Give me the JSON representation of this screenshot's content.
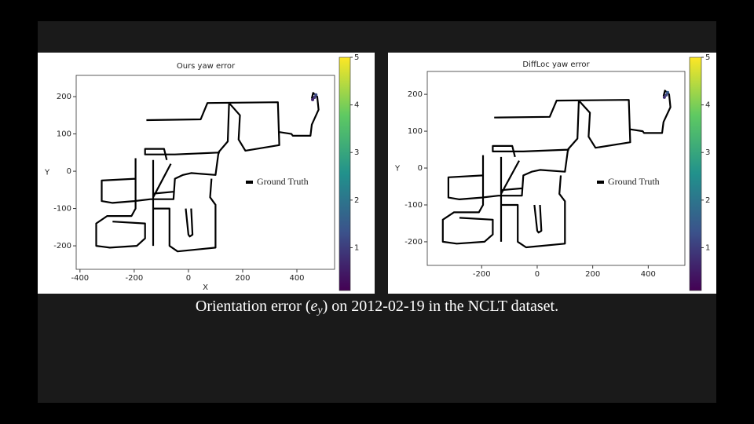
{
  "caption": {
    "before": "Orientation error (",
    "symbol": "e",
    "subscript": "y",
    "after": ") on 2012-02-19 in the NCLT dataset."
  },
  "chart_data": [
    {
      "type": "line",
      "title": "Ours yaw error",
      "xlabel": "X",
      "ylabel": "Y",
      "xlim": [
        -414,
        539
      ],
      "ylim": [
        -263,
        257
      ],
      "xticks": [
        -400,
        -200,
        0,
        200,
        400
      ],
      "yticks": [
        -200,
        -100,
        0,
        100,
        200
      ],
      "series": [
        {
          "name": "Ground Truth",
          "color": "#000000",
          "x": [
            -155,
            45,
            70,
            330,
            335,
            210,
            185,
            190,
            150,
            null,
            335,
            380,
            385,
            450,
            455,
            480,
            475,
            460,
            455,
            null,
            150,
            145,
            110,
            -50,
            -160,
            -160,
            -90,
            -80,
            null,
            -195,
            -195,
            -320,
            -320,
            -280,
            -200,
            -140,
            -55,
            -50,
            -20,
            10,
            100,
            110,
            115,
            null,
            -195,
            -195,
            -210,
            -300,
            -340,
            -340,
            -290,
            -190,
            -160,
            -160,
            -280,
            null,
            -130,
            -130,
            -70,
            -70,
            -40,
            100,
            100,
            80,
            85,
            null,
            -130,
            -65,
            null,
            -130,
            -55,
            null,
            -10,
            0,
            5,
            15,
            10,
            null,
            -130,
            -130
          ],
          "y": [
            137,
            139,
            183,
            185,
            70,
            55,
            85,
            150,
            183,
            null,
            105,
            100,
            95,
            95,
            125,
            165,
            200,
            210,
            195,
            null,
            185,
            80,
            50,
            45,
            45,
            60,
            60,
            30,
            null,
            35,
            -20,
            -25,
            -80,
            -85,
            -80,
            -75,
            -75,
            -20,
            -10,
            -5,
            -10,
            45,
            55,
            null,
            35,
            -100,
            -120,
            -120,
            -140,
            -200,
            -205,
            -200,
            -180,
            -140,
            -135,
            null,
            30,
            -100,
            -100,
            -200,
            -215,
            -205,
            -90,
            -70,
            -20,
            null,
            -70,
            20,
            null,
            -60,
            -55,
            null,
            -100,
            -170,
            -175,
            -170,
            -100,
            null,
            -100,
            -200
          ]
        }
      ],
      "error_points": {
        "x": [
          470,
          465,
          458
        ],
        "y": [
          205,
          198,
          192
        ],
        "values": [
          1.2,
          0.9,
          0.6
        ]
      },
      "colorbar": {
        "lim": [
          0.1,
          5
        ],
        "ticks": [
          1,
          2,
          3,
          4,
          5
        ],
        "colormap": [
          "#440154",
          "#3b528b",
          "#21918c",
          "#5ec962",
          "#fde725"
        ]
      }
    },
    {
      "type": "line",
      "title": "DiffLoc yaw error",
      "ylabel": "Y",
      "xlim": [
        -396,
        532
      ],
      "ylim": [
        -264,
        262
      ],
      "xticks": [
        -200,
        0,
        200,
        400
      ],
      "yticks": [
        -200,
        -100,
        0,
        100,
        200
      ],
      "series": [
        {
          "name": "Ground Truth",
          "color": "#000000",
          "x": [
            -155,
            45,
            70,
            330,
            335,
            210,
            185,
            190,
            150,
            null,
            335,
            380,
            385,
            450,
            455,
            480,
            475,
            460,
            455,
            null,
            150,
            145,
            110,
            -50,
            -160,
            -160,
            -90,
            -80,
            null,
            -195,
            -195,
            -320,
            -320,
            -280,
            -200,
            -140,
            -55,
            -50,
            -20,
            10,
            100,
            110,
            115,
            null,
            -195,
            -195,
            -210,
            -300,
            -340,
            -340,
            -290,
            -190,
            -160,
            -160,
            -280,
            null,
            -130,
            -130,
            -70,
            -70,
            -40,
            100,
            100,
            80,
            85,
            null,
            -130,
            -65,
            null,
            -130,
            -55,
            null,
            -10,
            0,
            5,
            15,
            10,
            null,
            -130,
            -130
          ],
          "y": [
            137,
            139,
            183,
            185,
            70,
            55,
            85,
            150,
            183,
            null,
            105,
            100,
            95,
            95,
            125,
            165,
            200,
            210,
            195,
            null,
            185,
            80,
            50,
            45,
            45,
            60,
            60,
            30,
            null,
            35,
            -20,
            -25,
            -80,
            -85,
            -80,
            -75,
            -75,
            -20,
            -10,
            -5,
            -10,
            45,
            55,
            null,
            35,
            -100,
            -120,
            -120,
            -140,
            -200,
            -205,
            -200,
            -180,
            -140,
            -135,
            null,
            30,
            -100,
            -100,
            -200,
            -215,
            -205,
            -90,
            -70,
            -20,
            null,
            -70,
            20,
            null,
            -60,
            -55,
            null,
            -100,
            -170,
            -175,
            -170,
            -100,
            null,
            -100,
            -200
          ]
        }
      ],
      "error_points": {
        "x": [
          470,
          465,
          458
        ],
        "y": [
          205,
          198,
          192
        ],
        "values": [
          1.5,
          1.1,
          0.8
        ]
      },
      "colorbar": {
        "lim": [
          0.1,
          5
        ],
        "ticks": [
          1,
          2,
          3,
          4,
          5
        ],
        "colormap": [
          "#440154",
          "#3b528b",
          "#21918c",
          "#5ec962",
          "#fde725"
        ]
      }
    }
  ]
}
